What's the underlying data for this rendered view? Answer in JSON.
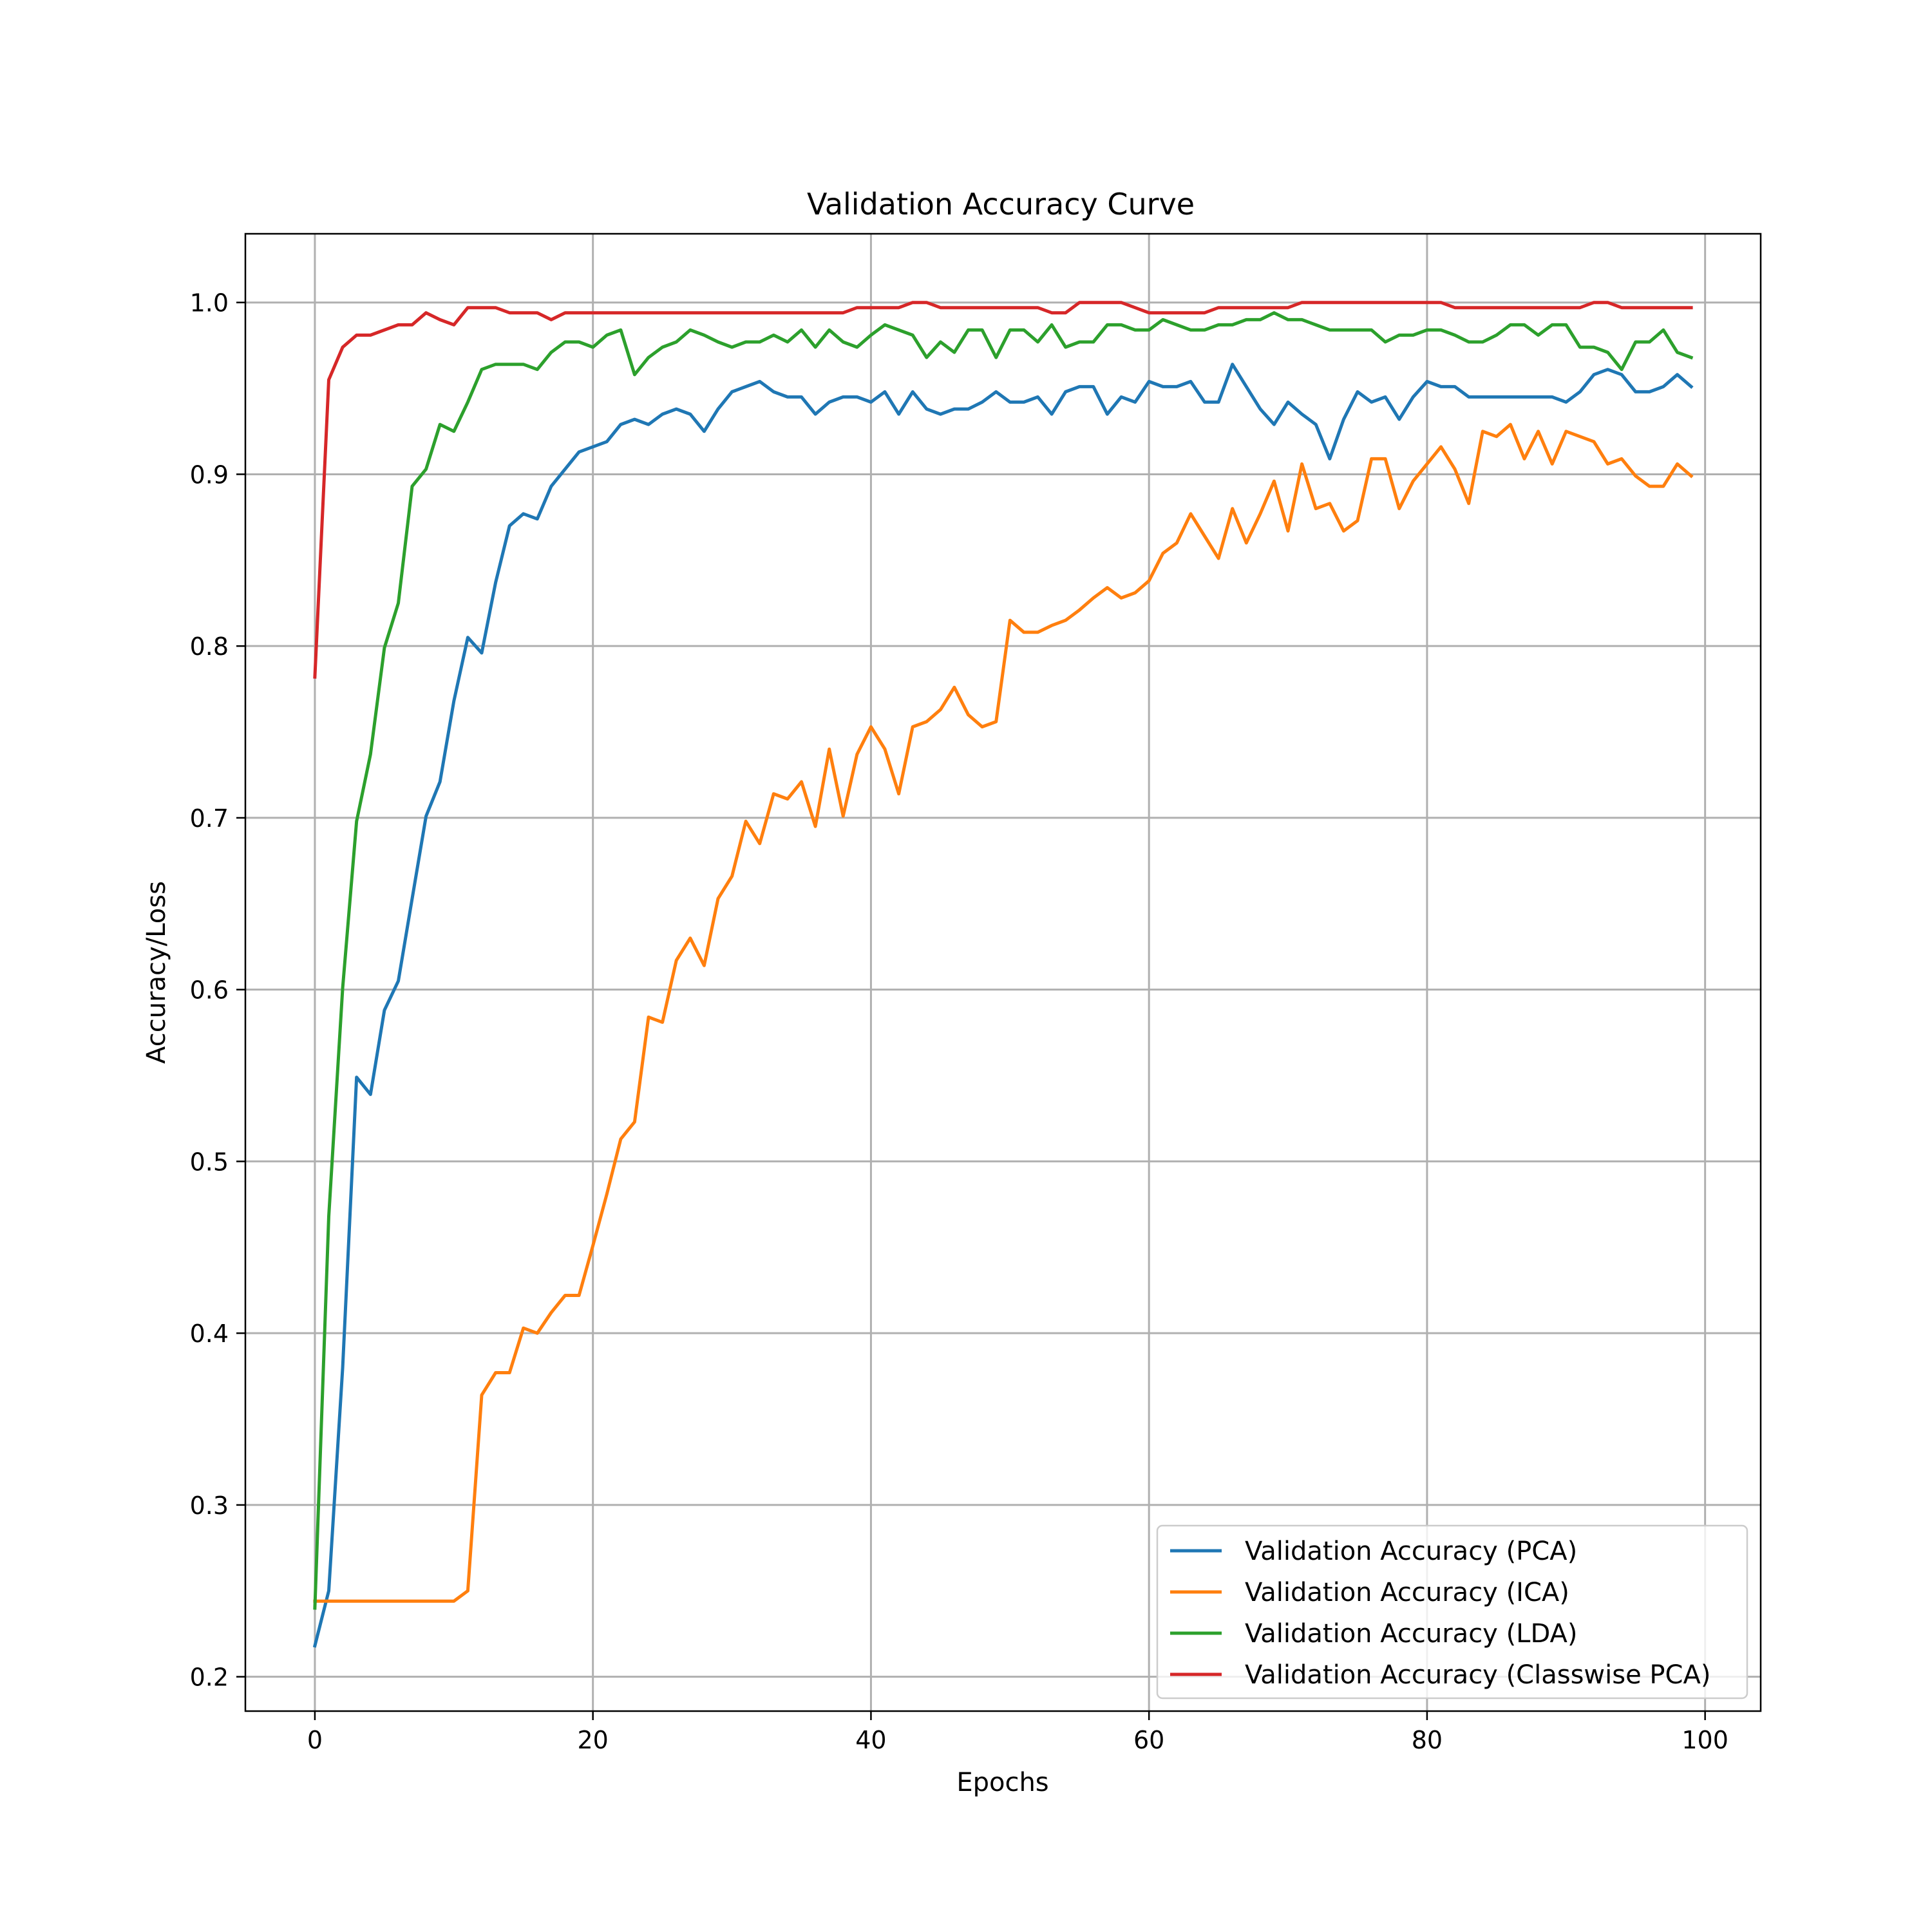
{
  "chart_data": {
    "type": "line",
    "title": "Validation Accuracy Curve",
    "xlabel": "Epochs",
    "ylabel": "Accuracy/Loss",
    "xlim": [
      -5,
      104
    ],
    "ylim": [
      0.18,
      1.04
    ],
    "xticks": [
      0,
      20,
      40,
      60,
      80,
      100
    ],
    "yticks": [
      0.2,
      0.3,
      0.4,
      0.5,
      0.6,
      0.7,
      0.8,
      0.9,
      1.0
    ],
    "ytick_labels": [
      "0.2",
      "0.3",
      "0.4",
      "0.5",
      "0.6",
      "0.7",
      "0.8",
      "0.9",
      "1.0"
    ],
    "grid": true,
    "legend_position": "lower-right",
    "series": [
      {
        "name": "Validation Accuracy (PCA)",
        "color": "#1f77b4",
        "values": [
          0.218,
          0.25,
          0.38,
          0.549,
          0.539,
          0.588,
          0.605,
          0.653,
          0.701,
          0.721,
          0.768,
          0.805,
          0.796,
          0.837,
          0.87,
          0.877,
          0.874,
          0.893,
          0.903,
          0.913,
          0.916,
          0.919,
          0.929,
          0.932,
          0.929,
          0.935,
          0.938,
          0.935,
          0.925,
          0.938,
          0.948,
          0.951,
          0.954,
          0.948,
          0.945,
          0.945,
          0.935,
          0.942,
          0.945,
          0.945,
          0.942,
          0.948,
          0.935,
          0.948,
          0.938,
          0.935,
          0.938,
          0.938,
          0.942,
          0.948,
          0.942,
          0.942,
          0.945,
          0.935,
          0.948,
          0.951,
          0.951,
          0.935,
          0.945,
          0.942,
          0.954,
          0.951,
          0.951,
          0.954,
          0.942,
          0.942,
          0.964,
          0.951,
          0.938,
          0.929,
          0.942,
          0.935,
          0.929,
          0.909,
          0.932,
          0.948,
          0.942,
          0.945,
          0.932,
          0.945,
          0.954,
          0.951,
          0.951,
          0.945,
          0.945,
          0.945,
          0.945,
          0.945,
          0.945,
          0.945,
          0.942,
          0.948,
          0.958,
          0.961,
          0.958,
          0.948,
          0.948,
          0.951,
          0.958,
          0.951
        ]
      },
      {
        "name": "Validation Accuracy (ICA)",
        "color": "#ff7f0e",
        "values": [
          0.244,
          0.244,
          0.244,
          0.244,
          0.244,
          0.244,
          0.244,
          0.244,
          0.244,
          0.244,
          0.244,
          0.25,
          0.364,
          0.377,
          0.377,
          0.403,
          0.4,
          0.412,
          0.422,
          0.422,
          0.451,
          0.481,
          0.513,
          0.523,
          0.584,
          0.581,
          0.617,
          0.63,
          0.614,
          0.653,
          0.666,
          0.698,
          0.685,
          0.714,
          0.711,
          0.721,
          0.695,
          0.74,
          0.701,
          0.737,
          0.753,
          0.74,
          0.714,
          0.753,
          0.756,
          0.763,
          0.776,
          0.76,
          0.753,
          0.756,
          0.815,
          0.808,
          0.808,
          0.812,
          0.815,
          0.821,
          0.828,
          0.834,
          0.828,
          0.831,
          0.838,
          0.854,
          0.86,
          0.877,
          0.864,
          0.851,
          0.88,
          0.86,
          0.877,
          0.896,
          0.867,
          0.906,
          0.88,
          0.883,
          0.867,
          0.873,
          0.909,
          0.909,
          0.88,
          0.896,
          0.906,
          0.916,
          0.903,
          0.883,
          0.925,
          0.922,
          0.929,
          0.909,
          0.925,
          0.906,
          0.925,
          0.922,
          0.919,
          0.906,
          0.909,
          0.899,
          0.893,
          0.893,
          0.906,
          0.899
        ]
      },
      {
        "name": "Validation Accuracy (LDA)",
        "color": "#2ca02c",
        "values": [
          0.24,
          0.468,
          0.601,
          0.698,
          0.737,
          0.799,
          0.825,
          0.893,
          0.903,
          0.929,
          0.925,
          0.942,
          0.961,
          0.964,
          0.964,
          0.964,
          0.961,
          0.971,
          0.977,
          0.977,
          0.974,
          0.981,
          0.984,
          0.958,
          0.968,
          0.974,
          0.977,
          0.984,
          0.981,
          0.977,
          0.974,
          0.977,
          0.977,
          0.981,
          0.977,
          0.984,
          0.974,
          0.984,
          0.977,
          0.974,
          0.981,
          0.987,
          0.984,
          0.981,
          0.968,
          0.977,
          0.971,
          0.984,
          0.984,
          0.968,
          0.984,
          0.984,
          0.977,
          0.987,
          0.974,
          0.977,
          0.977,
          0.987,
          0.987,
          0.984,
          0.984,
          0.99,
          0.987,
          0.984,
          0.984,
          0.987,
          0.987,
          0.99,
          0.99,
          0.994,
          0.99,
          0.99,
          0.987,
          0.984,
          0.984,
          0.984,
          0.984,
          0.977,
          0.981,
          0.981,
          0.984,
          0.984,
          0.981,
          0.977,
          0.977,
          0.981,
          0.987,
          0.987,
          0.981,
          0.987,
          0.987,
          0.974,
          0.974,
          0.971,
          0.961,
          0.977,
          0.977,
          0.984,
          0.971,
          0.968
        ]
      },
      {
        "name": "Validation Accuracy (Classwise PCA)",
        "color": "#d62728",
        "values": [
          0.782,
          0.955,
          0.974,
          0.981,
          0.981,
          0.984,
          0.987,
          0.987,
          0.994,
          0.99,
          0.987,
          0.997,
          0.997,
          0.997,
          0.994,
          0.994,
          0.994,
          0.99,
          0.994,
          0.994,
          0.994,
          0.994,
          0.994,
          0.994,
          0.994,
          0.994,
          0.994,
          0.994,
          0.994,
          0.994,
          0.994,
          0.994,
          0.994,
          0.994,
          0.994,
          0.994,
          0.994,
          0.994,
          0.994,
          0.997,
          0.997,
          0.997,
          0.997,
          1.0,
          1.0,
          0.997,
          0.997,
          0.997,
          0.997,
          0.997,
          0.997,
          0.997,
          0.997,
          0.994,
          0.994,
          1.0,
          1.0,
          1.0,
          1.0,
          0.997,
          0.994,
          0.994,
          0.994,
          0.994,
          0.994,
          0.997,
          0.997,
          0.997,
          0.997,
          0.997,
          0.997,
          1.0,
          1.0,
          1.0,
          1.0,
          1.0,
          1.0,
          1.0,
          1.0,
          1.0,
          1.0,
          1.0,
          0.997,
          0.997,
          0.997,
          0.997,
          0.997,
          0.997,
          0.997,
          0.997,
          0.997,
          0.997,
          1.0,
          1.0,
          0.997,
          0.997,
          0.997,
          0.997,
          0.997,
          0.997
        ]
      }
    ]
  }
}
